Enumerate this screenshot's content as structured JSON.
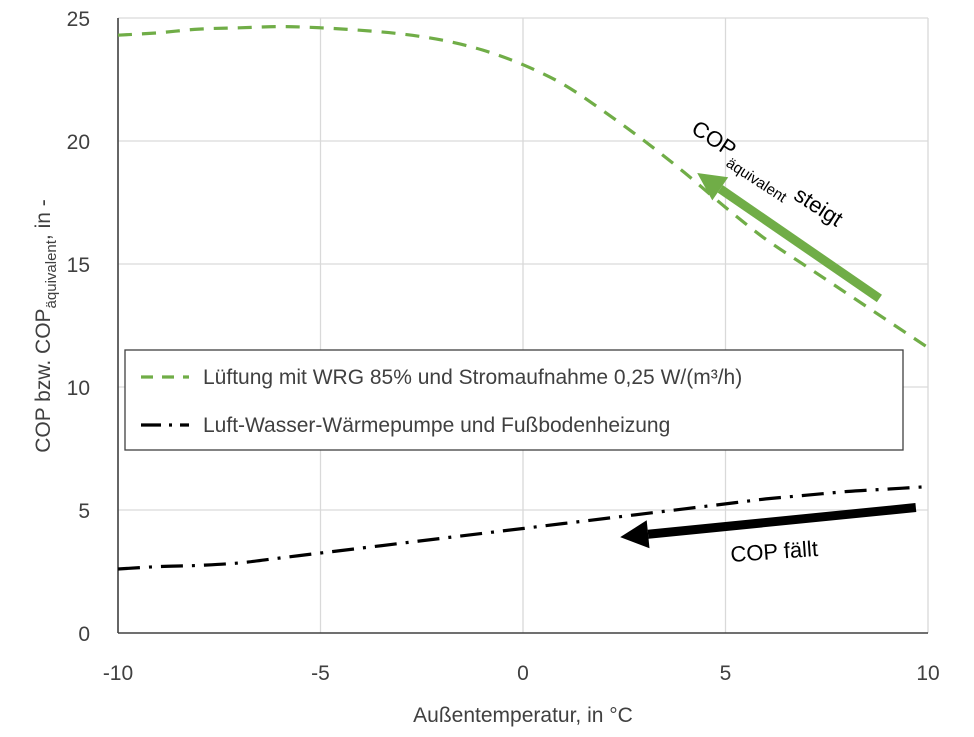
{
  "chart_data": {
    "type": "line",
    "xlabel": "Außentemperatur, in °C",
    "ylabel": {
      "main_before": "COP bzw. COP",
      "subscript": "äquivalent",
      "main_after": ", in -"
    },
    "xlim": [
      -10,
      10
    ],
    "ylim": [
      0,
      25
    ],
    "xticks": [
      -10,
      -5,
      0,
      5,
      10
    ],
    "yticks": [
      0,
      5,
      10,
      15,
      20,
      25
    ],
    "grid": true,
    "legend_position": "center-left, inside plot",
    "series": [
      {
        "name": "Lüftung mit WRG 85% und Stromaufnahme 0,25 W/(m³/h)",
        "color": "#70AD47",
        "style": "dashed",
        "x": [
          -10,
          -9,
          -8,
          -7,
          -6,
          -5,
          -4,
          -3,
          -2,
          -1,
          0,
          1,
          2,
          3,
          4,
          5,
          6,
          7,
          8,
          9,
          10
        ],
        "y": [
          24.3,
          24.4,
          24.55,
          24.6,
          24.65,
          24.6,
          24.5,
          24.35,
          24.1,
          23.7,
          23.1,
          22.3,
          21.2,
          20.0,
          18.7,
          17.3,
          16.0,
          14.9,
          13.8,
          12.7,
          11.6
        ]
      },
      {
        "name": "Luft-Wasser-Wärmepumpe und Fußbodenheizung",
        "color": "#000000",
        "style": "dash-dot",
        "x": [
          -10,
          -9,
          -8,
          -7,
          -6,
          -5,
          -4,
          -3,
          -2,
          -1,
          0,
          1,
          2,
          3,
          4,
          5,
          6,
          7,
          8,
          9,
          10
        ],
        "y": [
          2.6,
          2.7,
          2.75,
          2.85,
          3.05,
          3.25,
          3.45,
          3.65,
          3.85,
          4.05,
          4.25,
          4.45,
          4.65,
          4.85,
          5.05,
          5.25,
          5.45,
          5.6,
          5.75,
          5.85,
          5.95
        ]
      }
    ],
    "annotations": [
      {
        "text_main": "COP",
        "text_sub": "äquivalent",
        "text_after": " steigt",
        "color": "#70AD47",
        "arrow_from": [
          8.8,
          13.6
        ],
        "arrow_to": [
          4.3,
          18.7
        ]
      },
      {
        "text": "COP fällt",
        "color": "#000000",
        "arrow_from": [
          9.7,
          5.1
        ],
        "arrow_to": [
          2.4,
          3.9
        ]
      }
    ]
  }
}
